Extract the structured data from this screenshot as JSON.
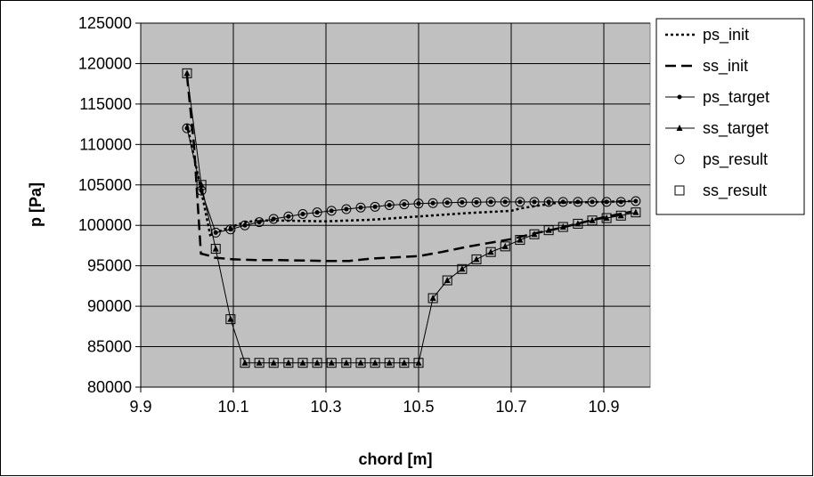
{
  "chart_data": {
    "type": "line",
    "xlabel": "chord [m]",
    "ylabel": "p [Pa]",
    "xlim": [
      9.9,
      11.0
    ],
    "ylim": [
      80000,
      125000
    ],
    "xticks": [
      "9.9",
      "10.1",
      "10.3",
      "10.5",
      "10.7",
      "10.9"
    ],
    "xtick_values": [
      9.9,
      10.1,
      10.3,
      10.5,
      10.7,
      10.9
    ],
    "yticks": [
      "125000",
      "120000",
      "115000",
      "110000",
      "105000",
      "100000",
      "95000",
      "90000",
      "85000",
      "80000"
    ],
    "ytick_values": [
      125000,
      120000,
      115000,
      110000,
      105000,
      100000,
      95000,
      90000,
      85000,
      80000
    ],
    "grid": true,
    "plot_background": "#c0c0c0",
    "legend_position": "right",
    "legend": [
      {
        "name": "ps_init",
        "style": "dotted"
      },
      {
        "name": "ss_init",
        "style": "dashed"
      },
      {
        "name": "ps_target",
        "style": "line-dot"
      },
      {
        "name": "ss_target",
        "style": "line-triangle"
      },
      {
        "name": "ps_result",
        "style": "circle"
      },
      {
        "name": "ss_result",
        "style": "square"
      }
    ],
    "x": [
      10.0,
      10.031,
      10.062,
      10.094,
      10.125,
      10.156,
      10.187,
      10.219,
      10.25,
      10.281,
      10.312,
      10.344,
      10.375,
      10.406,
      10.437,
      10.469,
      10.5,
      10.531,
      10.562,
      10.594,
      10.625,
      10.656,
      10.687,
      10.719,
      10.75,
      10.781,
      10.812,
      10.844,
      10.875,
      10.906,
      10.937,
      10.969
    ],
    "series": [
      {
        "name": "ps_init",
        "color": "#000000",
        "x": [
          10.0,
          10.03,
          10.05,
          10.08,
          10.12,
          10.15,
          10.2,
          10.3,
          10.4,
          10.5,
          10.6,
          10.7,
          10.72,
          10.8,
          10.9,
          10.96
        ],
        "values": [
          112500,
          104500,
          98800,
          99500,
          100300,
          100600,
          100600,
          100500,
          100700,
          101100,
          101500,
          101800,
          102100,
          102800,
          102900,
          103000
        ]
      },
      {
        "name": "ss_init",
        "color": "#000000",
        "x": [
          10.0,
          10.015,
          10.03,
          10.045,
          10.06,
          10.1,
          10.15,
          10.2,
          10.3,
          10.35,
          10.4,
          10.5,
          10.55,
          10.6,
          10.65,
          10.7,
          10.75,
          10.8,
          10.85,
          10.9,
          10.96
        ],
        "values": [
          118500,
          110000,
          96500,
          96300,
          96000,
          95800,
          95700,
          95700,
          95600,
          95600,
          95900,
          96200,
          96700,
          97300,
          97800,
          98300,
          99000,
          99600,
          100300,
          101000,
          101700
        ]
      },
      {
        "name": "ps_target",
        "color": "#000000",
        "values": [
          112000,
          104300,
          99100,
          99500,
          100000,
          100400,
          100800,
          101100,
          101400,
          101600,
          101800,
          102000,
          102200,
          102300,
          102500,
          102600,
          102700,
          102750,
          102800,
          102850,
          102850,
          102900,
          102900,
          102900,
          102900,
          102900,
          102900,
          102900,
          102900,
          102900,
          102900,
          103000
        ]
      },
      {
        "name": "ss_target",
        "color": "#000000",
        "values": [
          118800,
          105000,
          97100,
          88400,
          83000,
          83000,
          83000,
          83000,
          83000,
          83000,
          83000,
          83000,
          83000,
          83000,
          83000,
          83000,
          83000,
          91000,
          93200,
          94600,
          95800,
          96700,
          97400,
          98200,
          98900,
          99400,
          99800,
          100200,
          100600,
          100900,
          101200,
          101600
        ]
      },
      {
        "name": "ps_result",
        "color": "#000000",
        "values": [
          112000,
          104300,
          99100,
          99500,
          100000,
          100400,
          100800,
          101100,
          101400,
          101600,
          101800,
          102000,
          102200,
          102300,
          102500,
          102600,
          102700,
          102750,
          102800,
          102850,
          102850,
          102900,
          102900,
          102900,
          102900,
          102900,
          102900,
          102900,
          102900,
          102900,
          102900,
          103000
        ]
      },
      {
        "name": "ss_result",
        "color": "#000000",
        "values": [
          118800,
          105000,
          97100,
          88400,
          83000,
          83000,
          83000,
          83000,
          83000,
          83000,
          83000,
          83000,
          83000,
          83000,
          83000,
          83000,
          83000,
          91000,
          93200,
          94600,
          95800,
          96700,
          97400,
          98200,
          98900,
          99400,
          99800,
          100200,
          100600,
          100900,
          101200,
          101600
        ]
      }
    ]
  }
}
